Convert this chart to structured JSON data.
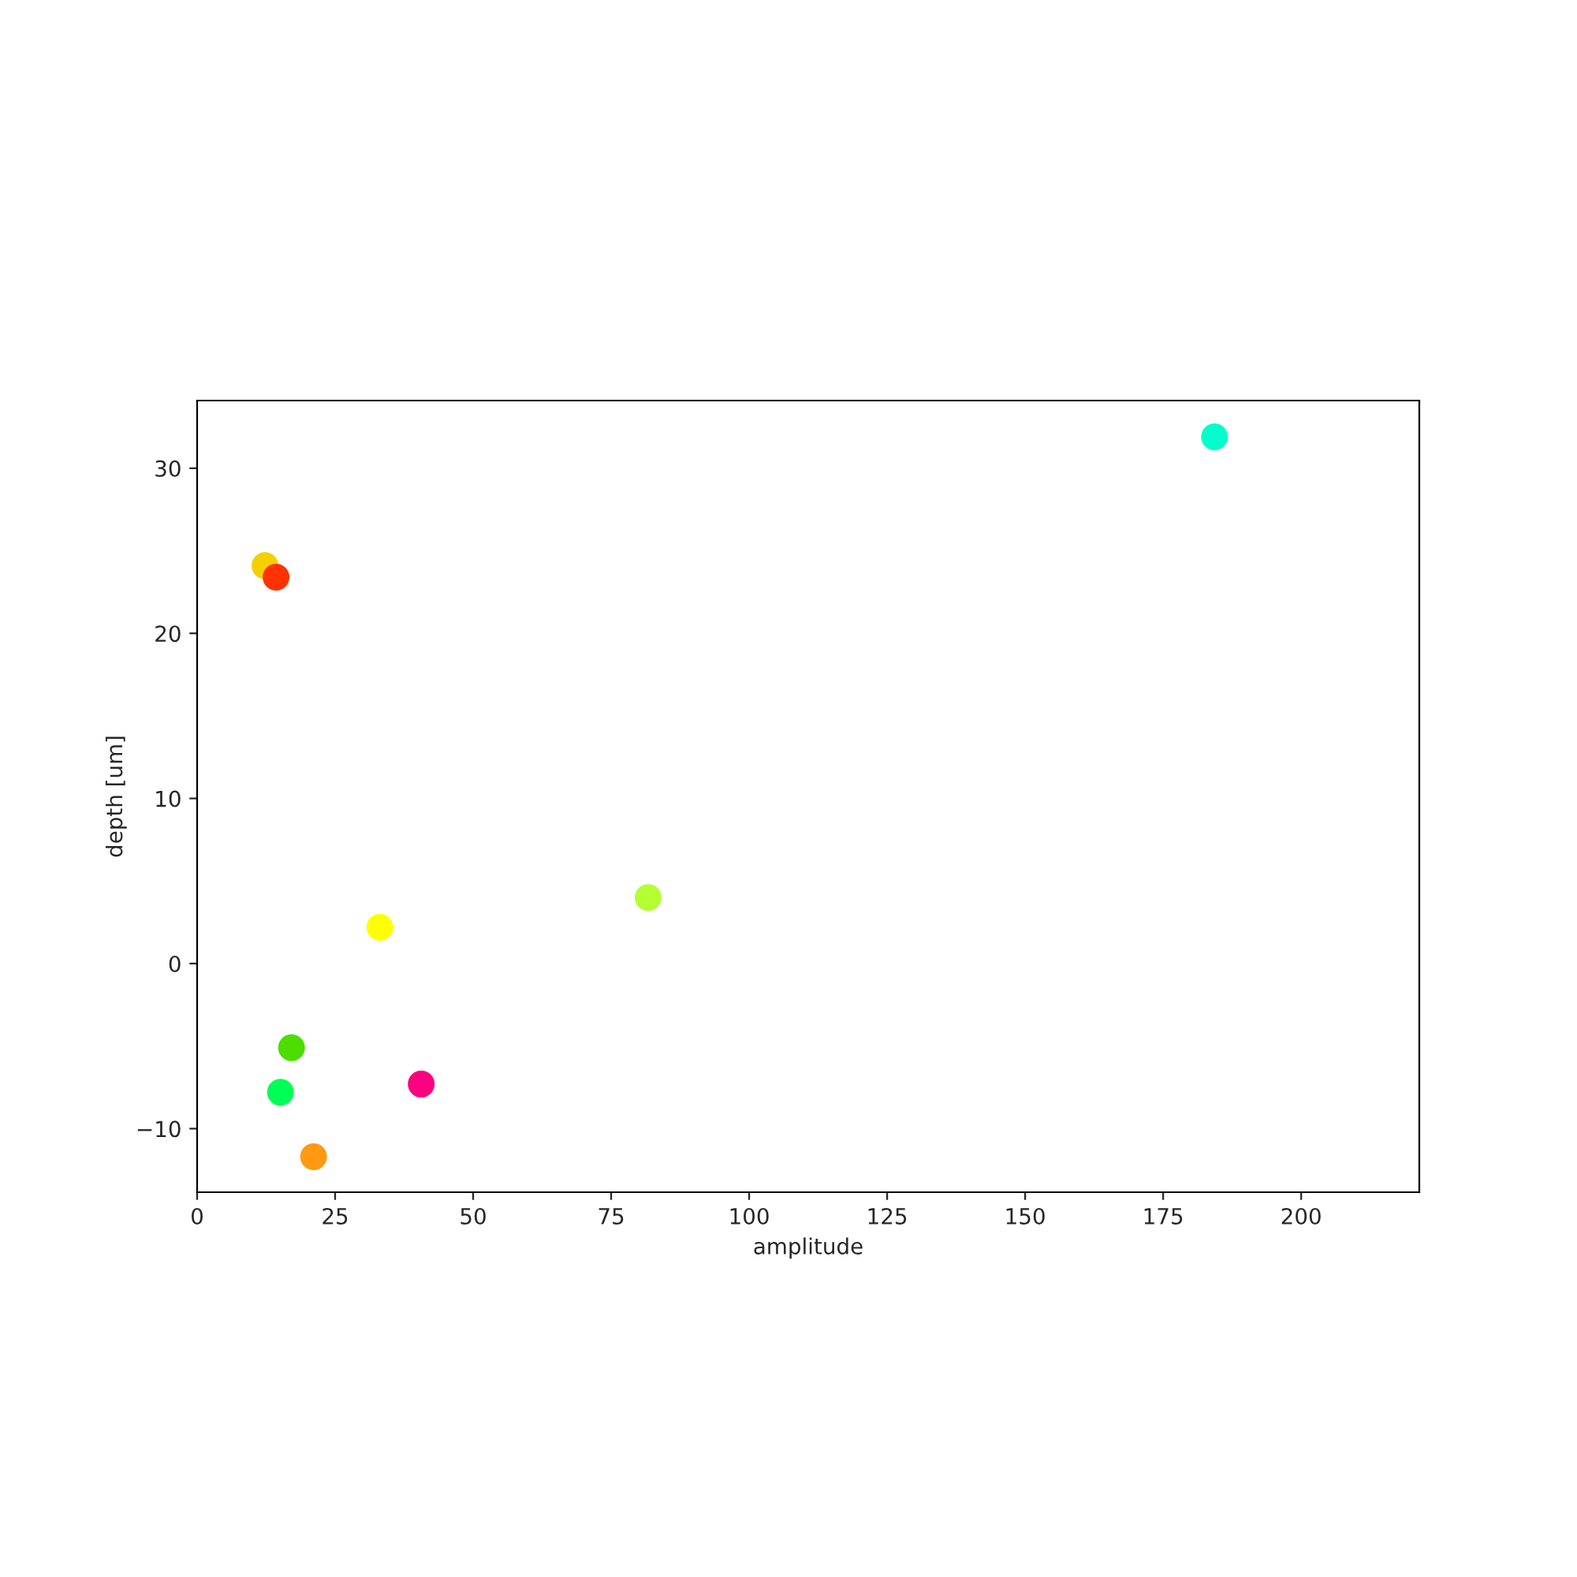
{
  "chart_data": {
    "type": "scatter",
    "xlabel": "amplitude",
    "ylabel": "depth [um]",
    "x": [
      184.3,
      12.3,
      14.3,
      81.7,
      33.1,
      17.1,
      15.1,
      40.6,
      21.1
    ],
    "values": [
      31.9,
      24.1,
      23.4,
      4.0,
      2.2,
      -5.1,
      -7.8,
      -7.3,
      -11.7
    ],
    "colors": [
      "#00ffcc",
      "#f5d000",
      "#ff3300",
      "#b3ff33",
      "#ffff00",
      "#4ddd00",
      "#00ff55",
      "#ff0080",
      "#ff9911"
    ],
    "xlim": [
      0,
      221.4
    ],
    "ylim": [
      -13.85,
      34.1
    ],
    "xticks": [
      0,
      25,
      50,
      75,
      100,
      125,
      150,
      175,
      200
    ],
    "yticks": [
      -10,
      0,
      10,
      20,
      30
    ],
    "marker": "circle",
    "grid": false,
    "legend": false
  }
}
